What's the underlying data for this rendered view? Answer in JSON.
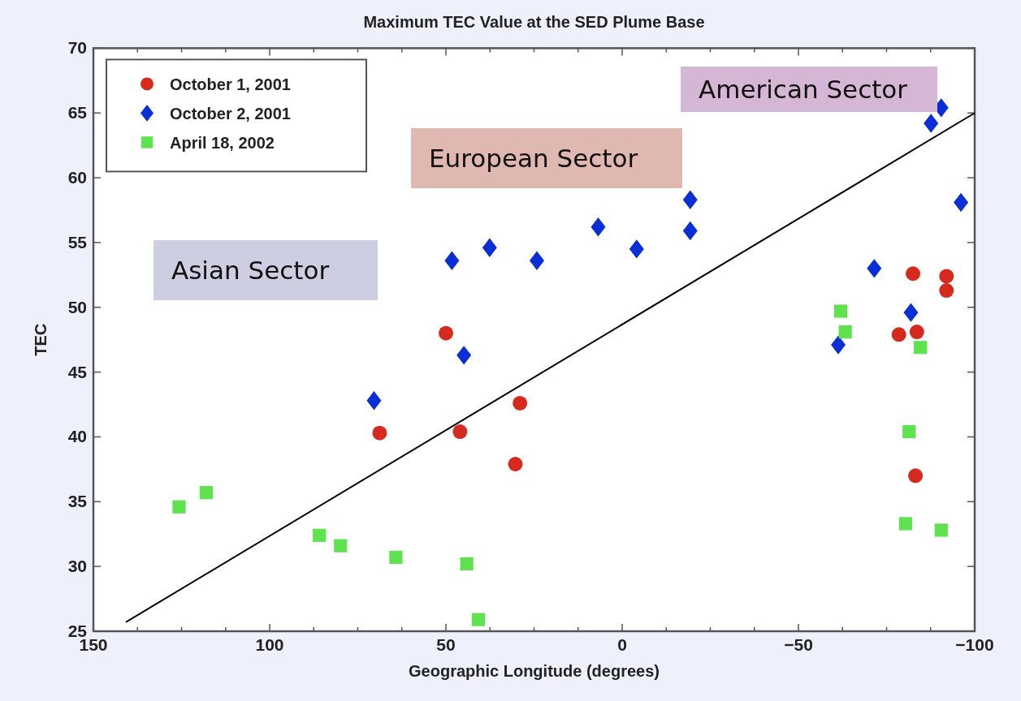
{
  "chart_data": {
    "type": "scatter",
    "title": "Maximum TEC Value at the SED Plume Base",
    "xlabel": "Geographic Longitude (degrees)",
    "ylabel": "TEC",
    "xlim": [
      150,
      -100
    ],
    "xticks": [
      150,
      100,
      50,
      0,
      -50,
      -100
    ],
    "ylim": [
      25,
      70
    ],
    "yticks": [
      25,
      30,
      35,
      40,
      45,
      50,
      55,
      60,
      65,
      70
    ],
    "grid": false,
    "legend": "top left",
    "annotations": [
      "American Sector",
      "European Sector",
      "Asian Sector"
    ],
    "series": [
      {
        "name": "October 1, 2001",
        "color": "#d62a1e",
        "marker": "circle",
        "x": [
          50,
          68.8,
          46,
          29,
          30.3,
          -82.5,
          -92,
          -92,
          -78.5,
          -83.6,
          -83.2
        ],
        "values": [
          48.0,
          40.3,
          40.4,
          42.6,
          37.9,
          52.6,
          52.4,
          51.3,
          47.9,
          48.1,
          37.0
        ]
      },
      {
        "name": "October 2, 2001",
        "color": "#0a2fd6",
        "marker": "diamond",
        "x": [
          70.4,
          44.9,
          48.3,
          37.6,
          24.2,
          6.8,
          -4.1,
          -19.3,
          -19.3,
          -71.5,
          -81.9,
          -61.3,
          -87.6,
          -90.5,
          -96.1
        ],
        "values": [
          42.8,
          46.3,
          53.6,
          54.6,
          53.6,
          56.2,
          54.5,
          58.3,
          55.9,
          53.0,
          49.6,
          47.1,
          64.2,
          65.4,
          58.1
        ]
      },
      {
        "name": "April 18, 2002",
        "color": "#5ee34f",
        "marker": "square",
        "x": [
          125.7,
          118,
          85.9,
          79.9,
          64.2,
          44.1,
          40.8,
          -62,
          -63.3,
          -84.6,
          -81.4,
          -80.4,
          -90.5
        ],
        "values": [
          34.6,
          35.7,
          32.4,
          31.6,
          30.7,
          30.2,
          25.9,
          49.7,
          48.1,
          46.9,
          40.4,
          33.3,
          32.8
        ]
      },
      {
        "type": "line",
        "color": "#000000",
        "marker": "none",
        "x": [
          140.8,
          -100
        ],
        "values": [
          25.7,
          65.0
        ]
      }
    ]
  }
}
